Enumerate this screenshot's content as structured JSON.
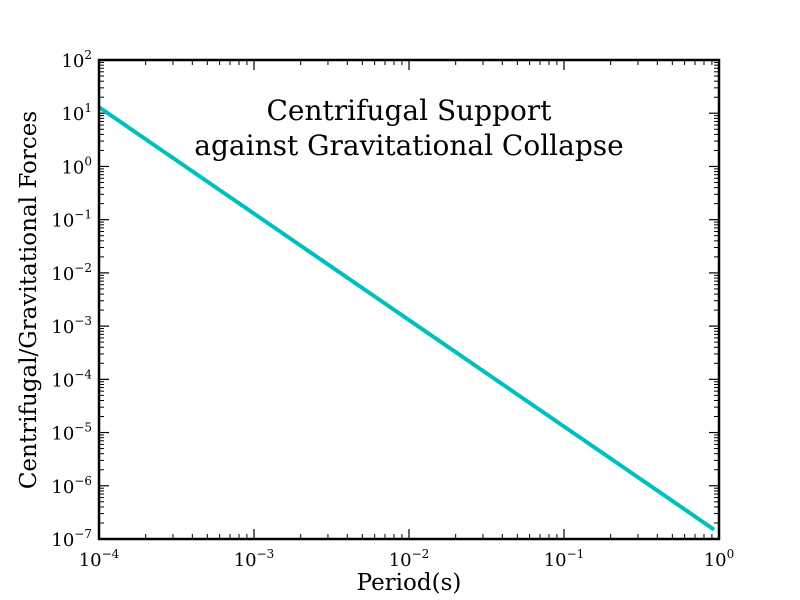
{
  "chart_data": {
    "type": "line",
    "title_lines": [
      "Centrifugal Support",
      "against Gravitational Collapse"
    ],
    "xlabel": "Period(s)",
    "ylabel": "Centrifugal/Gravitational Forces",
    "x_scale": "log",
    "y_scale": "log",
    "xlim": [
      0.0001,
      1
    ],
    "ylim": [
      1e-07,
      100
    ],
    "x_ticks": [
      {
        "base": "10",
        "exp": "−4",
        "value": 0.0001
      },
      {
        "base": "10",
        "exp": "−3",
        "value": 0.001
      },
      {
        "base": "10",
        "exp": "−2",
        "value": 0.01
      },
      {
        "base": "10",
        "exp": "−1",
        "value": 0.1
      },
      {
        "base": "10",
        "exp": "0",
        "value": 1
      }
    ],
    "y_ticks": [
      {
        "base": "10",
        "exp": "−7",
        "value": 1e-07
      },
      {
        "base": "10",
        "exp": "−6",
        "value": 1e-06
      },
      {
        "base": "10",
        "exp": "−5",
        "value": 1e-05
      },
      {
        "base": "10",
        "exp": "−4",
        "value": 0.0001
      },
      {
        "base": "10",
        "exp": "−3",
        "value": 0.001
      },
      {
        "base": "10",
        "exp": "−2",
        "value": 0.01
      },
      {
        "base": "10",
        "exp": "−1",
        "value": 0.1
      },
      {
        "base": "10",
        "exp": "0",
        "value": 1
      },
      {
        "base": "10",
        "exp": "1",
        "value": 10
      },
      {
        "base": "10",
        "exp": "2",
        "value": 100
      }
    ],
    "grid": false,
    "series": [
      {
        "color": "#00bfbf",
        "x": [
          0.0001,
          0.0003162,
          0.001,
          0.003162,
          0.01,
          0.03162,
          0.1,
          0.3162,
          0.93
        ],
        "y": [
          13,
          1.3,
          0.13,
          0.013,
          0.0013,
          0.00013,
          1.3e-05,
          1.3e-06,
          1.5e-07
        ]
      }
    ]
  }
}
